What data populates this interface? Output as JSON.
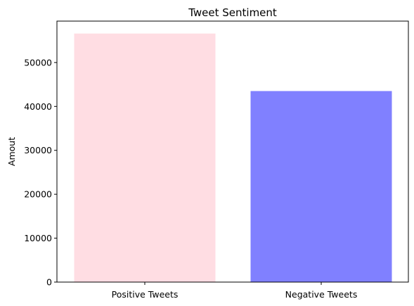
{
  "chart_data": {
    "type": "bar",
    "title": "Tweet Sentiment",
    "xlabel": "",
    "ylabel": "Amout",
    "categories": [
      "Positive Tweets",
      "Negative Tweets"
    ],
    "values": [
      56600,
      43500
    ],
    "colors": [
      "#ffdde3",
      "#8080ff"
    ],
    "ylim": [
      0,
      59430
    ],
    "yticks": [
      0,
      10000,
      20000,
      30000,
      40000,
      50000
    ],
    "grid": false
  }
}
